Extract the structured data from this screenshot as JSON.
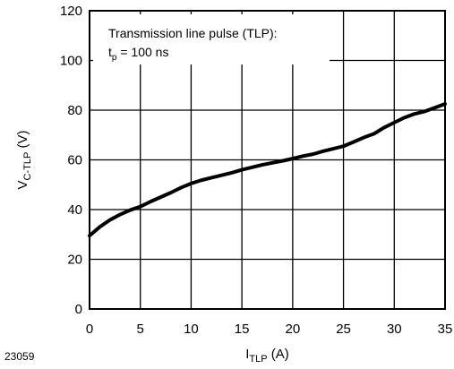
{
  "chart_data": {
    "type": "line",
    "xlabel": {
      "main": "I",
      "sub": "TLP",
      "unit": " (A)"
    },
    "ylabel": {
      "main": "V",
      "sub": "C-TLP",
      "unit": " (V)"
    },
    "xlim": [
      0,
      35
    ],
    "ylim": [
      0,
      120
    ],
    "xticks": [
      0,
      5,
      10,
      15,
      20,
      25,
      30,
      35
    ],
    "yticks": [
      0,
      20,
      40,
      60,
      80,
      100,
      120
    ],
    "grid": true,
    "annotation": {
      "line1": "Transmission line pulse (TLP):",
      "line2_main": "t",
      "line2_sub": "p",
      "line2_rest": " = 100 ns"
    },
    "figure_id": "23059",
    "series": [
      {
        "color": "#000000",
        "x": [
          0,
          1,
          2,
          3,
          4,
          5,
          6,
          7,
          8,
          9,
          10,
          11,
          12,
          13,
          14,
          15,
          16,
          17,
          18,
          19,
          20,
          21,
          22,
          23,
          24,
          25,
          26,
          27,
          28,
          29,
          30,
          31,
          32,
          33,
          34,
          35
        ],
        "y": [
          29.5,
          33,
          35.8,
          38,
          39.8,
          41.2,
          43.2,
          45,
          46.8,
          48.8,
          50.5,
          51.8,
          52.8,
          53.8,
          54.8,
          56,
          57,
          58,
          58.8,
          59.6,
          60.5,
          61.5,
          62.3,
          63.5,
          64.5,
          65.5,
          67.2,
          69,
          70.5,
          73,
          75,
          77,
          78.5,
          79.5,
          81,
          82.5
        ]
      }
    ]
  }
}
